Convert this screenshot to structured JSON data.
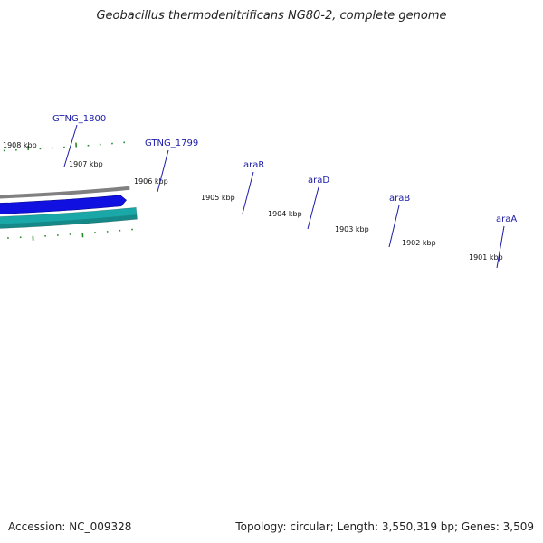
{
  "title": "Geobacillus thermodenitrificans NG80-2, complete genome",
  "footer": {
    "accession": "Accession: NC_009328",
    "stats": "Topology: circular; Length: 3,550,319 bp; Genes: 3,509"
  },
  "colors": {
    "cds_feature": "#1010e0",
    "gene_teal": "#1aa7a7",
    "gene_cyan": "#22e0e0",
    "gene_orange": "#ff8c00",
    "backbone": "#808080",
    "ticks": "#2a8a2a",
    "label": "#1a1aa8"
  },
  "ticks": [
    {
      "label": "1908 kbp"
    },
    {
      "label": "1907 kbp"
    },
    {
      "label": "1906 kbp"
    },
    {
      "label": "1905 kbp"
    },
    {
      "label": "1904 kbp"
    },
    {
      "label": "1903 kbp"
    },
    {
      "label": "1902 kbp"
    },
    {
      "label": "1901 kbp"
    }
  ],
  "genes": [
    {
      "name": "GTNG_1800",
      "type": "teal"
    },
    {
      "name": "GTNG_1799",
      "type": "teal"
    },
    {
      "name": "araR",
      "type": "orange"
    },
    {
      "name": "araD",
      "type": "teal"
    },
    {
      "name": "araB",
      "type": "cyan"
    },
    {
      "name": "araA",
      "type": "teal"
    }
  ]
}
